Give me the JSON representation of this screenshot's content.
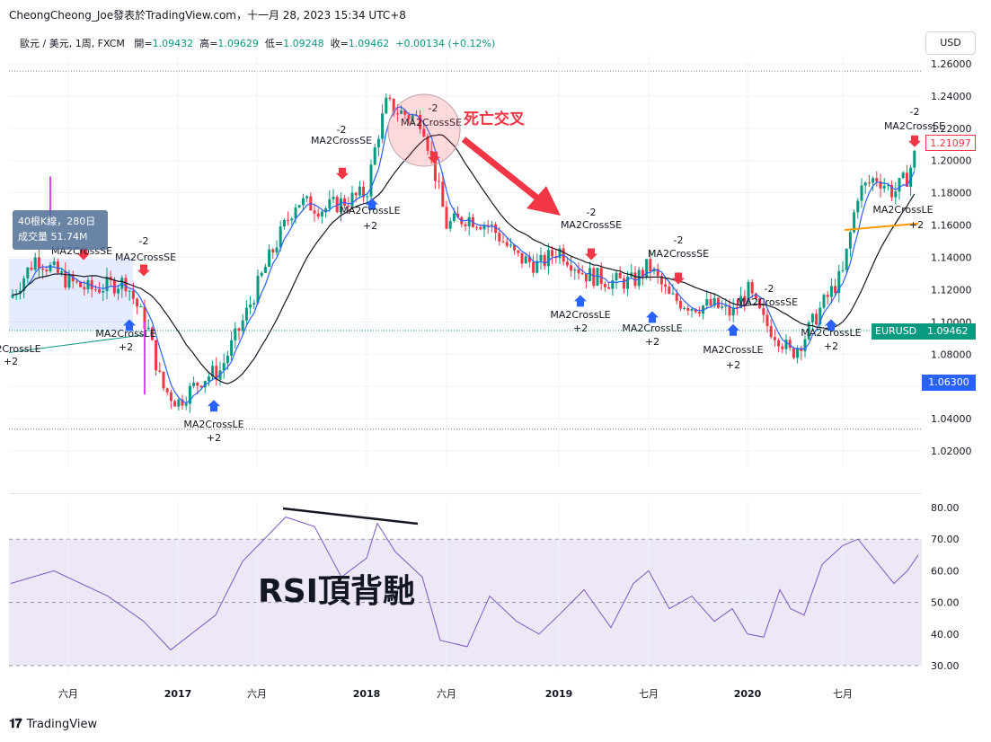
{
  "header": {
    "attribution": "CheongCheong_Joe發表於TradingView.com，十一月 28, 2023 15:34 UTC+8"
  },
  "symbol_line": {
    "symbol": "歐元 / 美元, 1周, FXCM",
    "open_label": "開=",
    "open": "1.09432",
    "high_label": "高=",
    "high": "1.09629",
    "low_label": "低=",
    "low": "1.09248",
    "close_label": "收=",
    "close": "1.09462",
    "change": "+0.00134 (+0.12%)"
  },
  "currency_button": "USD",
  "volume_box": {
    "line1": "40根K線，280日",
    "line2": "成交量 51.74M"
  },
  "price_tags": {
    "current": "1.21097",
    "low": "1.06300",
    "symbol": "EURUSD",
    "last": "1.09462"
  },
  "annotations": {
    "death_cross": "死亡交叉",
    "rsi_divergence": "RSI頂背馳"
  },
  "strategy_labels": {
    "short": "MA2CrossSE",
    "long": "MA2CrossLE",
    "short_qty": "-2",
    "long_qty": "+2"
  },
  "footer": {
    "brand": "TradingView"
  },
  "colors": {
    "up": "#089981",
    "down": "#f23645",
    "ma_fast": "#2962ff",
    "ma_slow": "#131722",
    "rsi": "#7e57c2",
    "rsi_band": "#ede7f6",
    "annotation": "#f23645"
  },
  "chart_data": [
    {
      "type": "candlestick",
      "title": "EURUSD 1W",
      "x_labels": [
        "六月",
        "2017",
        "六月",
        "2018",
        "六月",
        "2019",
        "七月",
        "2020",
        "七月"
      ],
      "y_ticks": [
        "1.26000",
        "1.24000",
        "1.22000",
        "1.20000",
        "1.18000",
        "1.16000",
        "1.14000",
        "1.12000",
        "1.10000",
        "1.08000",
        "1.06000",
        "1.04000",
        "1.02000"
      ],
      "ylim": [
        1.01,
        1.265
      ],
      "series": [
        {
          "name": "EURUSD close (approx.)",
          "x": [
            "2016-03",
            "2016-06",
            "2016-09",
            "2016-12",
            "2017-03",
            "2017-06",
            "2017-09",
            "2017-12",
            "2018-02",
            "2018-04",
            "2018-06",
            "2018-09",
            "2019-01",
            "2019-04",
            "2019-07",
            "2019-10",
            "2020-01",
            "2020-03",
            "2020-06",
            "2020-09",
            "2020-12"
          ],
          "values": [
            1.13,
            1.12,
            1.12,
            1.05,
            1.07,
            1.14,
            1.19,
            1.2,
            1.24,
            1.22,
            1.17,
            1.16,
            1.14,
            1.12,
            1.12,
            1.1,
            1.11,
            1.08,
            1.12,
            1.18,
            1.21
          ]
        }
      ],
      "annotations": [
        "MA2CrossSE -2",
        "MA2CrossLE +2",
        "死亡交叉"
      ]
    },
    {
      "type": "line",
      "title": "RSI",
      "y_ticks": [
        "80.00",
        "70.00",
        "60.00",
        "50.00",
        "40.00",
        "30.00"
      ],
      "ylim": [
        28,
        82
      ],
      "band": [
        30,
        70
      ],
      "series": [
        {
          "name": "RSI",
          "x": [
            "2016-03",
            "2016-06",
            "2016-09",
            "2016-12",
            "2017-03",
            "2017-06",
            "2017-08",
            "2017-10",
            "2018-01",
            "2018-04",
            "2018-06",
            "2018-09",
            "2019-01",
            "2019-04",
            "2019-07",
            "2019-10",
            "2020-01",
            "2020-03",
            "2020-06",
            "2020-09",
            "2020-12"
          ],
          "values": [
            56,
            50,
            58,
            35,
            45,
            68,
            77,
            66,
            75,
            60,
            34,
            45,
            48,
            40,
            54,
            44,
            58,
            38,
            60,
            69,
            65
          ]
        }
      ],
      "annotations": [
        "RSI頂背馳"
      ]
    }
  ]
}
